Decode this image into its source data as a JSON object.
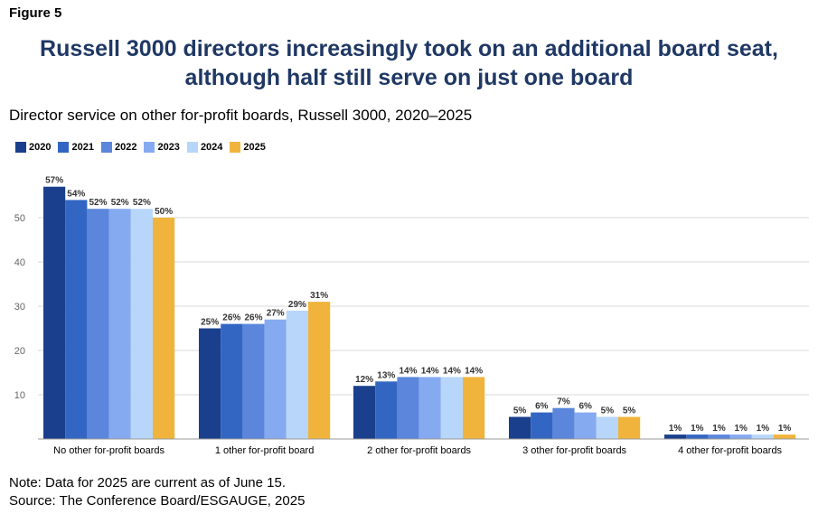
{
  "figure_label": "Figure 5",
  "title_line1": "Russell 3000 directors increasingly took on an additional board seat,",
  "title_line2": "although half still serve on just one board",
  "subtitle": "Director service on other for-profit boards, Russell 3000, 2020–2025",
  "note": "Note: Data for 2025 are current as of June 15.",
  "source": "Source: The Conference Board/ESGAUGE, 2025",
  "chart_data": {
    "type": "bar",
    "categories": [
      "No other for-profit boards",
      "1 other for-profit board",
      "2 other for-profit boards",
      "3 other for-profit boards",
      "4 other for-profit boards"
    ],
    "series": [
      {
        "name": "2020",
        "color": "#1a3f8c",
        "values": [
          57,
          25,
          12,
          5,
          1
        ],
        "labels": [
          "57%",
          "25%",
          "12%",
          "5%",
          "1%"
        ]
      },
      {
        "name": "2021",
        "color": "#3366c2",
        "values": [
          54,
          26,
          13,
          6,
          1
        ],
        "labels": [
          "54%",
          "26%",
          "13%",
          "6%",
          "1%"
        ]
      },
      {
        "name": "2022",
        "color": "#5b86dc",
        "values": [
          52,
          26,
          14,
          7,
          1
        ],
        "labels": [
          "52%",
          "26%",
          "14%",
          "7%",
          "1%"
        ]
      },
      {
        "name": "2023",
        "color": "#86aaf0",
        "values": [
          52,
          27,
          14,
          6,
          1
        ],
        "labels": [
          "52%",
          "27%",
          "14%",
          "6%",
          "1%"
        ]
      },
      {
        "name": "2024",
        "color": "#b8d6fa",
        "values": [
          52,
          29,
          14,
          5,
          1
        ],
        "labels": [
          "52%",
          "29%",
          "14%",
          "5%",
          "1%"
        ]
      },
      {
        "name": "2025",
        "color": "#f0b43c",
        "values": [
          50,
          31,
          14,
          5,
          1
        ],
        "labels": [
          "50%",
          "31%",
          "14%",
          "5%",
          "1%"
        ]
      }
    ],
    "yticks": [
      10,
      20,
      30,
      40,
      50
    ],
    "ylim": [
      0,
      60
    ],
    "grid": true,
    "legend_position": "top-left"
  }
}
